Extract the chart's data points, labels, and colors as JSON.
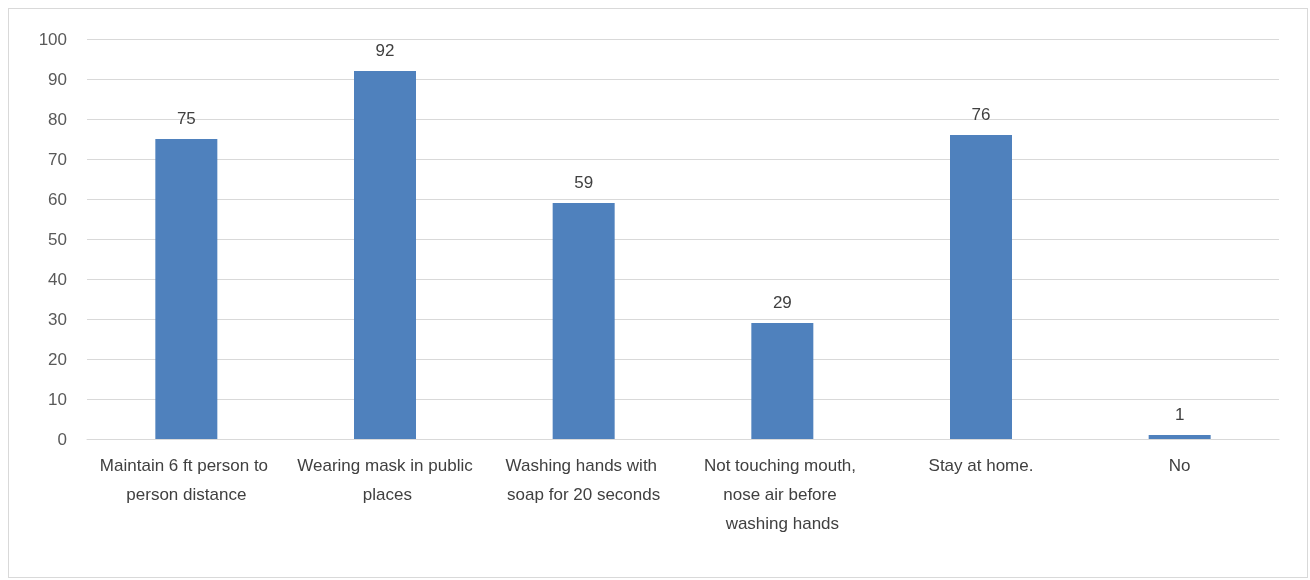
{
  "chart_data": {
    "type": "bar",
    "categories": [
      "Maintain 6 ft person to person distance",
      "Wearing mask in public places",
      "Washing hands with soap for 20 seconds",
      "Not touching mouth, nose air before washing hands",
      "Stay at home.",
      "No"
    ],
    "values": [
      75,
      92,
      59,
      29,
      76,
      1
    ],
    "color": "#4f81bd",
    "ylim": [
      0,
      100
    ],
    "yticks": [
      0,
      10,
      20,
      30,
      40,
      50,
      60,
      70,
      80,
      90,
      100
    ],
    "grid": "y",
    "data_labels": true
  }
}
